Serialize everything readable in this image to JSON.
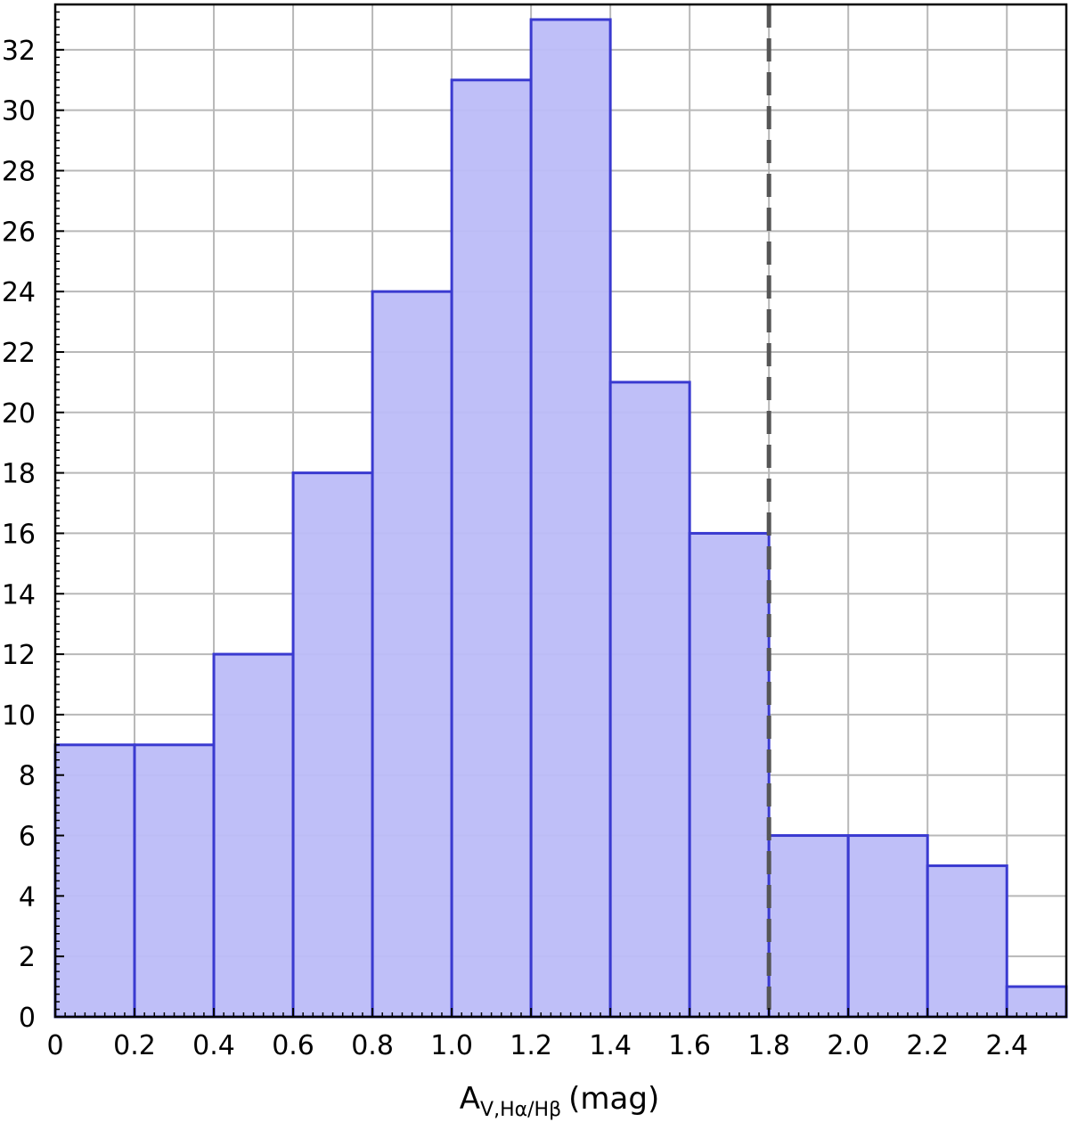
{
  "chart_data": {
    "type": "bar",
    "bin_edges": [
      0,
      0.2,
      0.4,
      0.6,
      0.8,
      1.0,
      1.2,
      1.4,
      1.6,
      1.8,
      2.0,
      2.2,
      2.4,
      2.6
    ],
    "values": [
      9,
      9,
      12,
      18,
      24,
      31,
      33,
      21,
      16,
      6,
      6,
      5,
      1
    ],
    "xlim": [
      0,
      2.55
    ],
    "ylim": [
      0,
      33.5
    ],
    "xticks": [
      0,
      0.2,
      0.4,
      0.6,
      0.8,
      1.0,
      1.2,
      1.4,
      1.6,
      1.8,
      2.0,
      2.2,
      2.4
    ],
    "xtick_labels": [
      "0",
      "0.2",
      "0.4",
      "0.6",
      "0.8",
      "1.0",
      "1.2",
      "1.4",
      "1.6",
      "1.8",
      "2.0",
      "2.2",
      "2.4"
    ],
    "yticks": [
      0,
      2,
      4,
      6,
      8,
      10,
      12,
      14,
      16,
      18,
      20,
      22,
      24,
      26,
      28,
      30,
      32
    ],
    "ytick_labels": [
      "0",
      "2",
      "4",
      "6",
      "8",
      "10",
      "12",
      "14",
      "16",
      "18",
      "20",
      "22",
      "24",
      "26",
      "28",
      "30",
      "32"
    ],
    "xlabel": {
      "main": "A",
      "subscript": "V,Hα/Hβ",
      "unit": "(mag)"
    },
    "ylabel": "",
    "grid": true,
    "vline": {
      "x": 1.8,
      "style": "dashed"
    },
    "colors": {
      "bar_fill": "#bcbcf8",
      "bar_edge": "#3a3ad0",
      "grid": "#b8b8b8",
      "vline": "#555555"
    }
  }
}
